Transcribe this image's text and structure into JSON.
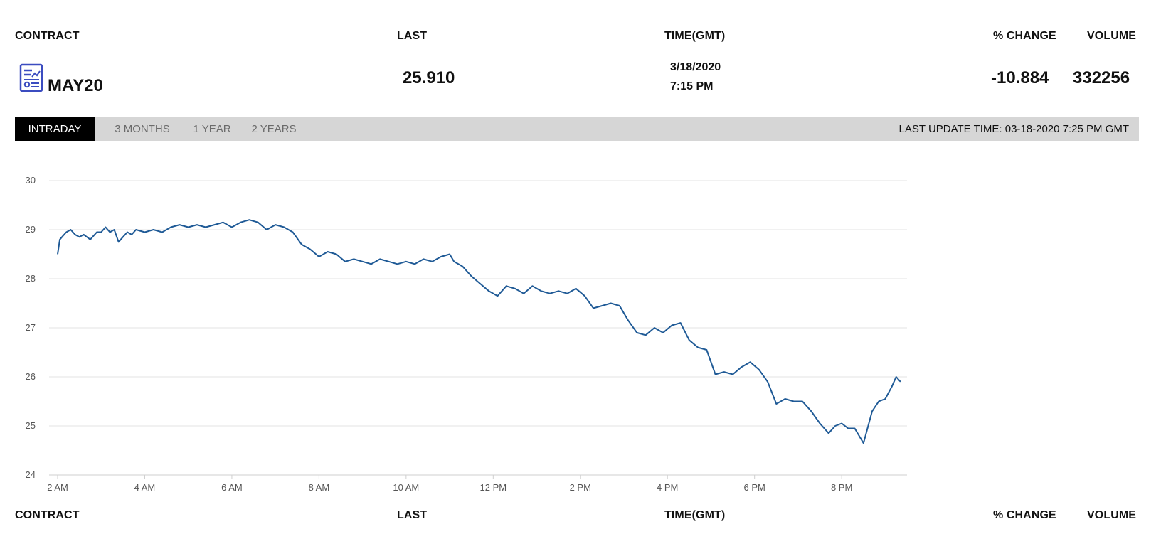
{
  "header": {
    "contract_label": "CONTRACT",
    "last_label": "LAST",
    "time_label": "TIME(GMT)",
    "change_label": "% CHANGE",
    "volume_label": "VOLUME"
  },
  "quote": {
    "contract": "MAY20",
    "contract_icon": "report-document-icon",
    "last": "25.910",
    "date": "3/18/2020",
    "time": "7:15 PM",
    "change": "-10.884",
    "volume": "332256"
  },
  "tabs": [
    {
      "label": "INTRADAY",
      "active": true
    },
    {
      "label": "3 MONTHS",
      "active": false
    },
    {
      "label": "1 YEAR",
      "active": false
    },
    {
      "label": "2 YEARS",
      "active": false
    }
  ],
  "last_update": "LAST UPDATE TIME: 03-18-2020 7:25 PM GMT",
  "colors": {
    "line": "#1f5a96",
    "grid": "#e3e3e3",
    "tab_active_bg": "#000000",
    "tab_bar_bg": "#d6d6d6",
    "icon": "#3b4cc0"
  },
  "chart_data": {
    "type": "line",
    "x_unit": "hours since midnight GMT",
    "xlim": [
      2,
      21.5
    ],
    "ylim": [
      24,
      30
    ],
    "x_ticks": [
      2,
      4,
      6,
      8,
      10,
      12,
      14,
      16,
      18,
      20
    ],
    "x_tick_labels": [
      "2 AM",
      "4 AM",
      "6 AM",
      "8 AM",
      "10 AM",
      "12 PM",
      "2 PM",
      "4 PM",
      "6 PM",
      "8 PM"
    ],
    "y_ticks": [
      24,
      25,
      26,
      27,
      28,
      29,
      30
    ],
    "y_tick_labels": [
      "24",
      "25",
      "26",
      "27",
      "28",
      "29",
      "30"
    ],
    "grid": "horizontal",
    "series": [
      {
        "x": [
          2.0,
          2.05,
          2.1,
          2.2,
          2.3,
          2.4,
          2.5,
          2.6,
          2.75,
          2.9,
          3.0,
          3.1,
          3.2,
          3.3,
          3.4,
          3.5,
          3.6,
          3.7,
          3.8,
          4.0,
          4.2,
          4.4,
          4.6,
          4.8,
          5.0,
          5.2,
          5.4,
          5.6,
          5.8,
          6.0,
          6.2,
          6.4,
          6.6,
          6.8,
          7.0,
          7.2,
          7.4,
          7.6,
          7.8,
          8.0,
          8.2,
          8.4,
          8.6,
          8.8,
          9.0,
          9.2,
          9.4,
          9.6,
          9.8,
          10.0,
          10.2,
          10.4,
          10.6,
          10.8,
          11.0,
          11.1,
          11.3,
          11.5,
          11.7,
          11.9,
          12.1,
          12.3,
          12.5,
          12.7,
          12.9,
          13.1,
          13.3,
          13.5,
          13.7,
          13.9,
          14.1,
          14.3,
          14.5,
          14.7,
          14.9,
          15.1,
          15.3,
          15.5,
          15.7,
          15.9,
          16.1,
          16.3,
          16.5,
          16.7,
          16.9,
          17.1,
          17.3,
          17.5,
          17.7,
          17.9,
          18.1,
          18.3,
          18.5,
          18.7,
          18.9,
          19.1,
          19.3,
          19.5,
          19.7,
          19.85,
          20.0,
          20.15,
          20.3,
          20.5,
          20.7,
          20.85,
          21.0,
          21.15,
          21.25,
          21.35
        ],
        "y": [
          28.5,
          28.8,
          28.85,
          28.95,
          29.0,
          28.9,
          28.85,
          28.9,
          28.8,
          28.95,
          28.95,
          29.05,
          28.95,
          29.0,
          28.75,
          28.85,
          28.95,
          28.9,
          29.0,
          28.95,
          29.0,
          28.95,
          29.05,
          29.1,
          29.05,
          29.1,
          29.05,
          29.1,
          29.15,
          29.05,
          29.15,
          29.2,
          29.15,
          29.0,
          29.1,
          29.05,
          28.95,
          28.7,
          28.6,
          28.45,
          28.55,
          28.5,
          28.35,
          28.4,
          28.35,
          28.3,
          28.4,
          28.35,
          28.3,
          28.35,
          28.3,
          28.4,
          28.35,
          28.45,
          28.5,
          28.35,
          28.25,
          28.05,
          27.9,
          27.75,
          27.65,
          27.85,
          27.8,
          27.7,
          27.85,
          27.75,
          27.7,
          27.75,
          27.7,
          27.8,
          27.65,
          27.4,
          27.45,
          27.5,
          27.45,
          27.15,
          26.9,
          26.85,
          27.0,
          26.9,
          27.05,
          27.1,
          26.75,
          26.6,
          26.55,
          26.05,
          26.1,
          26.05,
          26.2,
          26.3,
          26.15,
          25.9,
          25.45,
          25.55,
          25.5,
          25.5,
          25.3,
          25.05,
          24.85,
          25.0,
          25.05,
          24.95,
          24.95,
          24.65,
          25.3,
          25.5,
          25.55,
          25.8,
          26.0,
          25.9
        ]
      }
    ]
  }
}
